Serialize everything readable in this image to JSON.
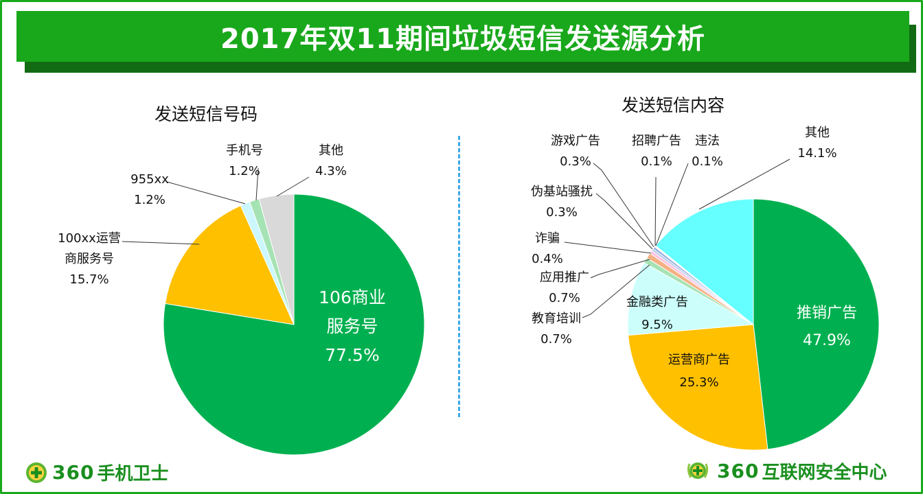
{
  "header": {
    "title": "2017年双11期间垃圾短信发送源分析"
  },
  "chart_data": [
    {
      "type": "pie",
      "title": "发送短信号码",
      "start_angle_deg": 90,
      "direction": "clockwise",
      "slices": [
        {
          "label": "106商业服务号",
          "label_lines": [
            "106商业",
            "服务号"
          ],
          "display": "77.5%",
          "value": 77.5,
          "color": "#00b050"
        },
        {
          "label": "100xx运营商服务号",
          "label_lines": [
            "100xx运营",
            "商服务号"
          ],
          "display": "15.7%",
          "value": 15.7,
          "color": "#ffc000"
        },
        {
          "label": "955xx",
          "label_lines": [
            "955xx"
          ],
          "display": "1.2%",
          "value": 1.2,
          "color": "#ccf7ff"
        },
        {
          "label": "手机号",
          "label_lines": [
            "手机号"
          ],
          "display": "1.2%",
          "value": 1.2,
          "color": "#a6e3b4"
        },
        {
          "label": "其他",
          "label_lines": [
            "其他"
          ],
          "display": "4.3%",
          "value": 4.3,
          "color": "#d9d9d9"
        }
      ]
    },
    {
      "type": "pie",
      "title": "发送短信内容",
      "start_angle_deg": 90,
      "direction": "clockwise",
      "slices": [
        {
          "label": "推销广告",
          "label_lines": [
            "推销广告"
          ],
          "display": "47.9%",
          "value": 47.9,
          "color": "#00b050"
        },
        {
          "label": "运营商广告",
          "label_lines": [
            "运营商广告"
          ],
          "display": "25.3%",
          "value": 25.3,
          "color": "#ffc000"
        },
        {
          "label": "金融类广告",
          "label_lines": [
            "金融类广告"
          ],
          "display": "9.5%",
          "value": 9.5,
          "color": "#ccfffc"
        },
        {
          "label": "教育培训",
          "label_lines": [
            "教育培训"
          ],
          "display": "0.7%",
          "value": 0.7,
          "color": "#a6e3b4"
        },
        {
          "label": "应用推广",
          "label_lines": [
            "应用推广"
          ],
          "display": "0.7%",
          "value": 0.7,
          "color": "#f4b183"
        },
        {
          "label": "诈骗",
          "label_lines": [
            "诈骗"
          ],
          "display": "0.4%",
          "value": 0.4,
          "color": "#ffc0e0"
        },
        {
          "label": "伪基站骚扰",
          "label_lines": [
            "伪基站骚扰"
          ],
          "display": "0.3%",
          "value": 0.3,
          "color": "#b4c7e7"
        },
        {
          "label": "游戏广告",
          "label_lines": [
            "游戏广告"
          ],
          "display": "0.3%",
          "value": 0.3,
          "color": "#8fa9db"
        },
        {
          "label": "招聘广告",
          "label_lines": [
            "招聘广告"
          ],
          "display": "0.1%",
          "value": 0.1,
          "color": "#c5e0b4"
        },
        {
          "label": "违法",
          "label_lines": [
            "违法"
          ],
          "display": "0.1%",
          "value": 0.1,
          "color": "#ffe699"
        },
        {
          "label": "其他",
          "label_lines": [
            "其他"
          ],
          "display": "14.1%",
          "value": 14.1,
          "color": "#66ffff"
        }
      ]
    }
  ],
  "footer": {
    "left_logo": {
      "number": "360",
      "text": "手机卫士",
      "icon": "360-shield-plus-icon"
    },
    "right_logo": {
      "number": "360",
      "text": "互联网安全中心",
      "icon": "360-shield-plus-icon"
    }
  },
  "colors": {
    "brand_green": "#19a81b",
    "dark_green": "#126b12",
    "divider_blue": "#3fa9e8"
  }
}
